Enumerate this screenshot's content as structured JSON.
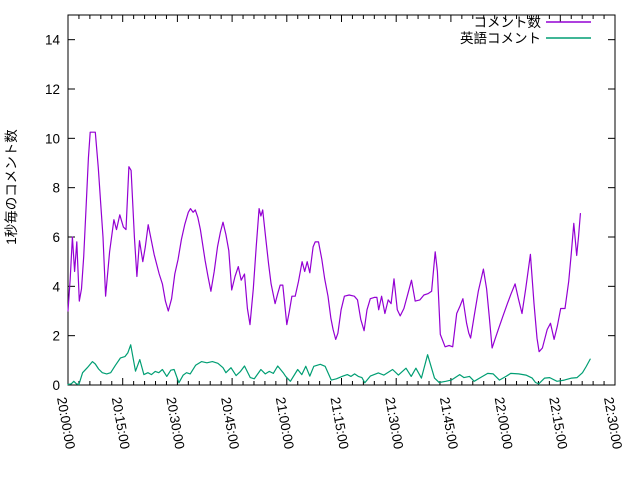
{
  "chart_data": {
    "type": "line",
    "title": "",
    "xlabel": "",
    "ylabel": "1秒毎のコメント数",
    "grid": false,
    "legend_position": "top-right-inside",
    "ylim": [
      0,
      15
    ],
    "ytick_values": [
      0,
      2,
      4,
      6,
      8,
      10,
      12,
      14
    ],
    "xlim_minutes": [
      0,
      150
    ],
    "x_minor_interval_minutes": 3,
    "xtick_minutes": [
      0,
      15,
      30,
      45,
      60,
      75,
      90,
      105,
      120,
      135,
      150
    ],
    "xtick_labels": [
      "20:00:00",
      "20:15:00",
      "20:30:00",
      "20:45:00",
      "21:00:00",
      "21:15:00",
      "21:30:00",
      "21:45:00",
      "22:00:00",
      "22:15:00",
      "22:30:00"
    ],
    "series": [
      {
        "name": "コメント数",
        "color": "#9400d3",
        "points": [
          [
            0,
            3.0
          ],
          [
            0.6,
            4.3
          ],
          [
            1.2,
            6.0
          ],
          [
            1.8,
            4.6
          ],
          [
            2.4,
            5.8
          ],
          [
            3.1,
            3.4
          ],
          [
            3.7,
            3.9
          ],
          [
            4.3,
            5.2
          ],
          [
            5.0,
            7.3
          ],
          [
            5.6,
            9.2
          ],
          [
            6.1,
            10.25
          ],
          [
            7.5,
            10.25
          ],
          [
            8.3,
            8.8
          ],
          [
            9.0,
            7.3
          ],
          [
            9.6,
            6.0
          ],
          [
            10.3,
            3.6
          ],
          [
            11.4,
            5.4
          ],
          [
            12.6,
            6.7
          ],
          [
            13.3,
            6.3
          ],
          [
            14.2,
            6.9
          ],
          [
            15.2,
            6.4
          ],
          [
            15.9,
            6.3
          ],
          [
            16.7,
            8.85
          ],
          [
            17.3,
            8.7
          ],
          [
            18.2,
            6.0
          ],
          [
            18.9,
            4.4
          ],
          [
            19.6,
            5.85
          ],
          [
            20.5,
            5.0
          ],
          [
            21.2,
            5.6
          ],
          [
            22.0,
            6.5
          ],
          [
            23.6,
            5.3
          ],
          [
            25.0,
            4.5
          ],
          [
            25.9,
            4.1
          ],
          [
            26.7,
            3.4
          ],
          [
            27.5,
            3.0
          ],
          [
            28.4,
            3.5
          ],
          [
            29.3,
            4.5
          ],
          [
            30.2,
            5.1
          ],
          [
            31.1,
            5.9
          ],
          [
            32.0,
            6.5
          ],
          [
            33.0,
            7.0
          ],
          [
            33.6,
            7.15
          ],
          [
            34.3,
            7.0
          ],
          [
            34.9,
            7.1
          ],
          [
            35.6,
            6.8
          ],
          [
            36.3,
            6.3
          ],
          [
            37.6,
            5.05
          ],
          [
            38.4,
            4.4
          ],
          [
            39.2,
            3.8
          ],
          [
            40.1,
            4.6
          ],
          [
            41.0,
            5.6
          ],
          [
            41.8,
            6.2
          ],
          [
            42.5,
            6.6
          ],
          [
            43.3,
            6.1
          ],
          [
            44.1,
            5.45
          ],
          [
            44.9,
            3.85
          ],
          [
            45.8,
            4.4
          ],
          [
            46.7,
            4.8
          ],
          [
            47.5,
            4.25
          ],
          [
            48.4,
            4.5
          ],
          [
            49.2,
            3.1
          ],
          [
            49.9,
            2.45
          ],
          [
            50.8,
            3.9
          ],
          [
            51.6,
            5.6
          ],
          [
            52.4,
            7.15
          ],
          [
            52.9,
            6.85
          ],
          [
            53.4,
            7.1
          ],
          [
            54.2,
            6.0
          ],
          [
            55.0,
            4.9
          ],
          [
            55.7,
            4.1
          ],
          [
            56.8,
            3.3
          ],
          [
            57.5,
            3.7
          ],
          [
            58.2,
            4.05
          ],
          [
            58.9,
            4.05
          ],
          [
            60.0,
            2.45
          ],
          [
            60.7,
            3.0
          ],
          [
            61.4,
            3.6
          ],
          [
            62.3,
            3.6
          ],
          [
            63.2,
            4.2
          ],
          [
            64.2,
            5.0
          ],
          [
            64.9,
            4.6
          ],
          [
            65.6,
            5.0
          ],
          [
            66.3,
            4.55
          ],
          [
            67.2,
            5.6
          ],
          [
            67.8,
            5.8
          ],
          [
            68.7,
            5.8
          ],
          [
            69.6,
            5.1
          ],
          [
            70.4,
            4.3
          ],
          [
            71.3,
            3.6
          ],
          [
            72.1,
            2.7
          ],
          [
            72.7,
            2.25
          ],
          [
            73.4,
            1.85
          ],
          [
            74.0,
            2.1
          ],
          [
            74.9,
            3.05
          ],
          [
            75.8,
            3.6
          ],
          [
            77.1,
            3.65
          ],
          [
            78.5,
            3.6
          ],
          [
            79.4,
            3.45
          ],
          [
            80.3,
            2.65
          ],
          [
            81.2,
            2.2
          ],
          [
            82.0,
            3.05
          ],
          [
            82.9,
            3.5
          ],
          [
            84.0,
            3.55
          ],
          [
            84.7,
            3.55
          ],
          [
            85.2,
            3.05
          ],
          [
            86.0,
            3.6
          ],
          [
            86.9,
            2.9
          ],
          [
            87.8,
            3.45
          ],
          [
            88.6,
            3.3
          ],
          [
            89.4,
            4.3
          ],
          [
            90.3,
            3.05
          ],
          [
            91.1,
            2.8
          ],
          [
            92.1,
            3.1
          ],
          [
            93.2,
            3.7
          ],
          [
            94.2,
            4.25
          ],
          [
            95.2,
            3.4
          ],
          [
            96.5,
            3.45
          ],
          [
            97.6,
            3.65
          ],
          [
            98.7,
            3.7
          ],
          [
            99.7,
            3.8
          ],
          [
            100.7,
            5.4
          ],
          [
            101.3,
            4.6
          ],
          [
            102.1,
            2.05
          ],
          [
            103.4,
            1.55
          ],
          [
            104.5,
            1.6
          ],
          [
            105.5,
            1.55
          ],
          [
            106.6,
            2.9
          ],
          [
            107.5,
            3.2
          ],
          [
            108.3,
            3.5
          ],
          [
            109.3,
            2.5
          ],
          [
            109.9,
            2.1
          ],
          [
            110.4,
            1.9
          ],
          [
            111.4,
            2.8
          ],
          [
            112.5,
            3.8
          ],
          [
            113.9,
            4.7
          ],
          [
            114.8,
            3.9
          ],
          [
            115.5,
            2.8
          ],
          [
            116.3,
            1.5
          ],
          [
            117.2,
            1.9
          ],
          [
            118.1,
            2.3
          ],
          [
            119.3,
            2.8
          ],
          [
            120.5,
            3.3
          ],
          [
            121.5,
            3.7
          ],
          [
            122.6,
            4.1
          ],
          [
            123.5,
            3.5
          ],
          [
            124.5,
            2.9
          ],
          [
            125.5,
            3.9
          ],
          [
            126.8,
            5.3
          ],
          [
            127.8,
            3.3
          ],
          [
            128.6,
            1.9
          ],
          [
            129.2,
            1.35
          ],
          [
            130.1,
            1.5
          ],
          [
            131.4,
            2.25
          ],
          [
            132.3,
            2.5
          ],
          [
            133.3,
            1.85
          ],
          [
            134.2,
            2.4
          ],
          [
            135.1,
            3.1
          ],
          [
            136.3,
            3.1
          ],
          [
            137.3,
            4.2
          ],
          [
            138.0,
            5.3
          ],
          [
            138.7,
            6.55
          ],
          [
            139.5,
            5.25
          ],
          [
            140.0,
            6.0
          ],
          [
            140.5,
            6.95
          ]
        ]
      },
      {
        "name": "英語コメント",
        "color": "#009e73",
        "points": [
          [
            0,
            0.02
          ],
          [
            0.9,
            0.05
          ],
          [
            1.6,
            0.15
          ],
          [
            2.3,
            0.05
          ],
          [
            3.0,
            0.02
          ],
          [
            4.0,
            0.5
          ],
          [
            5.3,
            0.7
          ],
          [
            6.7,
            0.95
          ],
          [
            7.5,
            0.85
          ],
          [
            8.4,
            0.65
          ],
          [
            9.4,
            0.5
          ],
          [
            10.6,
            0.45
          ],
          [
            11.7,
            0.5
          ],
          [
            13.0,
            0.8
          ],
          [
            14.4,
            1.1
          ],
          [
            15.6,
            1.15
          ],
          [
            16.4,
            1.3
          ],
          [
            17.2,
            1.63
          ],
          [
            18.5,
            0.56
          ],
          [
            19.7,
            1.03
          ],
          [
            20.8,
            0.42
          ],
          [
            21.9,
            0.5
          ],
          [
            22.9,
            0.42
          ],
          [
            23.9,
            0.55
          ],
          [
            24.9,
            0.5
          ],
          [
            25.9,
            0.63
          ],
          [
            27.1,
            0.35
          ],
          [
            28.2,
            0.6
          ],
          [
            29.1,
            0.63
          ],
          [
            30.4,
            0.09
          ],
          [
            31.6,
            0.4
          ],
          [
            32.5,
            0.5
          ],
          [
            33.5,
            0.45
          ],
          [
            35.0,
            0.8
          ],
          [
            36.6,
            0.95
          ],
          [
            38.1,
            0.9
          ],
          [
            39.6,
            0.95
          ],
          [
            41.1,
            0.88
          ],
          [
            42.5,
            0.7
          ],
          [
            43.3,
            0.5
          ],
          [
            44.7,
            0.7
          ],
          [
            46.1,
            0.38
          ],
          [
            47.3,
            0.55
          ],
          [
            48.4,
            0.77
          ],
          [
            50.0,
            0.3
          ],
          [
            51.1,
            0.25
          ],
          [
            52.9,
            0.63
          ],
          [
            54.1,
            0.45
          ],
          [
            55.2,
            0.55
          ],
          [
            56.3,
            0.47
          ],
          [
            57.5,
            0.77
          ],
          [
            59.0,
            0.5
          ],
          [
            59.7,
            0.35
          ],
          [
            61.0,
            0.15
          ],
          [
            63.0,
            0.63
          ],
          [
            64.1,
            0.42
          ],
          [
            65.2,
            0.76
          ],
          [
            66.3,
            0.36
          ],
          [
            67.4,
            0.76
          ],
          [
            69.2,
            0.84
          ],
          [
            70.5,
            0.76
          ],
          [
            72.2,
            0.2
          ],
          [
            73.6,
            0.25
          ],
          [
            75.4,
            0.36
          ],
          [
            76.6,
            0.42
          ],
          [
            77.6,
            0.35
          ],
          [
            78.6,
            0.45
          ],
          [
            79.6,
            0.35
          ],
          [
            80.6,
            0.3
          ],
          [
            81.4,
            0.09
          ],
          [
            82.9,
            0.36
          ],
          [
            85.1,
            0.49
          ],
          [
            86.6,
            0.4
          ],
          [
            89.0,
            0.63
          ],
          [
            90.6,
            0.4
          ],
          [
            92.7,
            0.68
          ],
          [
            94.1,
            0.35
          ],
          [
            95.4,
            0.68
          ],
          [
            96.9,
            0.28
          ],
          [
            98.6,
            1.23
          ],
          [
            100.5,
            0.28
          ],
          [
            101.8,
            0.1
          ],
          [
            103.6,
            0.15
          ],
          [
            105.1,
            0.2
          ],
          [
            107.4,
            0.42
          ],
          [
            108.6,
            0.3
          ],
          [
            110.1,
            0.35
          ],
          [
            111.4,
            0.15
          ],
          [
            113.1,
            0.3
          ],
          [
            115.1,
            0.47
          ],
          [
            116.6,
            0.45
          ],
          [
            118.3,
            0.2
          ],
          [
            120.1,
            0.35
          ],
          [
            121.4,
            0.47
          ],
          [
            123.6,
            0.45
          ],
          [
            125.6,
            0.4
          ],
          [
            127.3,
            0.28
          ],
          [
            128.2,
            0.1
          ],
          [
            129.1,
            0.05
          ],
          [
            130.7,
            0.28
          ],
          [
            132.1,
            0.3
          ],
          [
            134.1,
            0.15
          ],
          [
            136.1,
            0.2
          ],
          [
            138.1,
            0.28
          ],
          [
            139.6,
            0.3
          ],
          [
            141.1,
            0.5
          ],
          [
            142.1,
            0.75
          ],
          [
            143.2,
            1.05
          ]
        ]
      }
    ]
  }
}
